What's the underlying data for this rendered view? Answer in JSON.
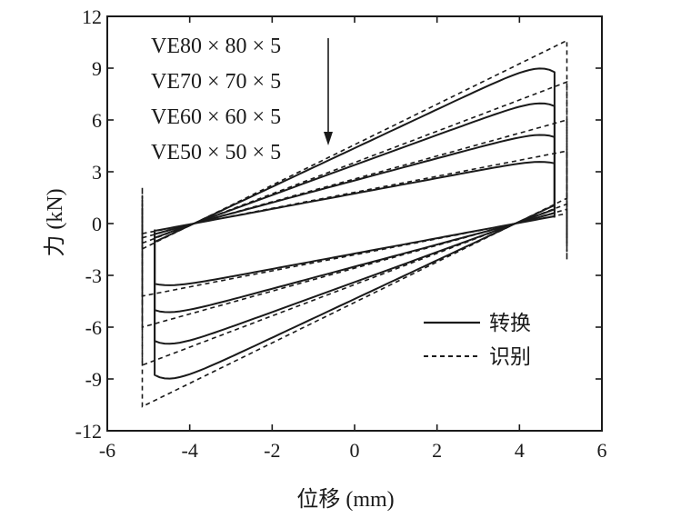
{
  "chart_data": {
    "type": "line",
    "xlabel": "位移 (mm)",
    "ylabel": "力 (kN)",
    "xlim": [
      -6,
      6
    ],
    "ylim": [
      -12,
      12
    ],
    "xticks": [
      -6,
      -4,
      -2,
      0,
      2,
      4,
      6
    ],
    "yticks": [
      -12,
      -9,
      -6,
      -3,
      0,
      3,
      6,
      9,
      12
    ],
    "xtick_labels": [
      "-6",
      "-4",
      "-2",
      "0",
      "2",
      "4",
      "6"
    ],
    "ytick_labels": [
      "-12",
      "-9",
      "-6",
      "-3",
      "0",
      "3",
      "6",
      "9",
      "12"
    ],
    "grid": false,
    "legend_position": "right",
    "legend": [
      {
        "label": "转换",
        "style": "solid"
      },
      {
        "label": "识别",
        "style": "dashed"
      }
    ],
    "annotations": [
      "VE80 × 80 × 5",
      "VE70 × 70 × 5",
      "VE60 × 60 × 5",
      "VE50 × 50 × 5"
    ],
    "loops": [
      {
        "label": "VE80 × 80 × 5",
        "transformed_peak": 9.8,
        "identified_peak": 10.6,
        "zero_cross_disp": 3.9
      },
      {
        "label": "VE70 × 70 × 5",
        "transformed_peak": 7.6,
        "identified_peak": 8.2,
        "zero_cross_disp": 3.9
      },
      {
        "label": "VE60 × 60 × 5",
        "transformed_peak": 5.6,
        "identified_peak": 6.0,
        "zero_cross_disp": 3.9
      },
      {
        "label": "VE50 × 50 × 5",
        "transformed_peak": 3.9,
        "identified_peak": 4.2,
        "zero_cross_disp": 3.9
      }
    ],
    "x_amplitude": 5.0
  }
}
